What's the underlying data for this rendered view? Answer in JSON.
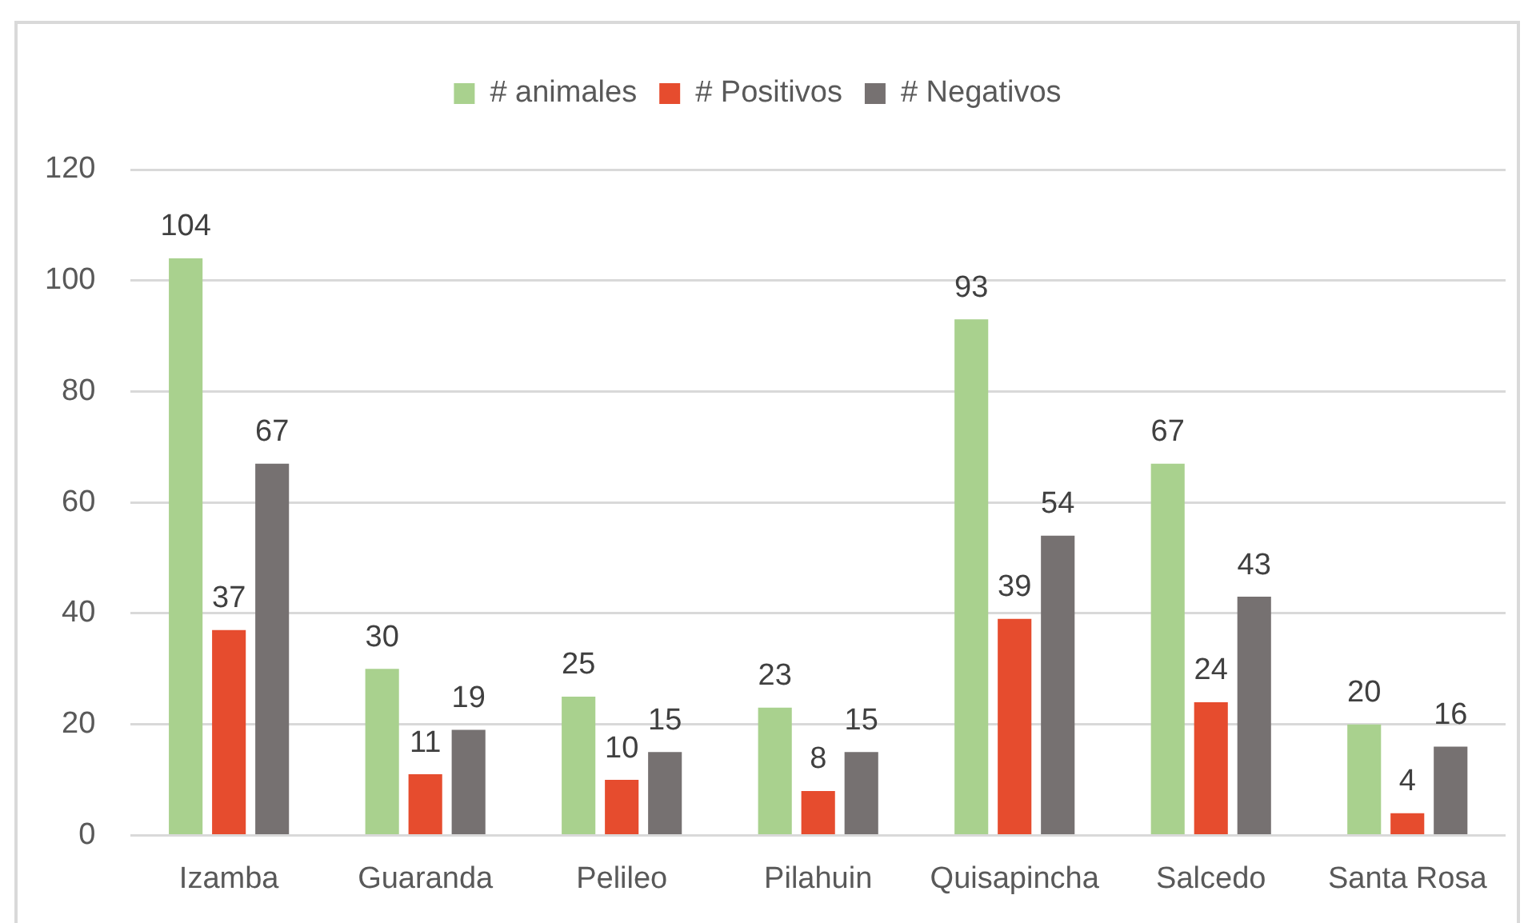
{
  "chart_data": {
    "type": "bar",
    "categories": [
      "Izamba",
      "Guaranda",
      "Pelileo",
      "Pilahuin",
      "Quisapincha",
      "Salcedo",
      "Santa Rosa"
    ],
    "series": [
      {
        "name": "# animales",
        "color": "#a9d18e",
        "values": [
          104,
          30,
          25,
          23,
          93,
          67,
          20
        ]
      },
      {
        "name": "# Positivos",
        "color": "#e64c2e",
        "values": [
          37,
          11,
          10,
          8,
          39,
          24,
          4
        ]
      },
      {
        "name": "# Negativos",
        "color": "#767171",
        "values": [
          67,
          19,
          15,
          15,
          54,
          43,
          16
        ]
      }
    ],
    "ylim": [
      0,
      120
    ],
    "yticks": [
      0,
      20,
      40,
      60,
      80,
      100,
      120
    ],
    "grid": "y",
    "legend": "top",
    "data_labels": true
  }
}
